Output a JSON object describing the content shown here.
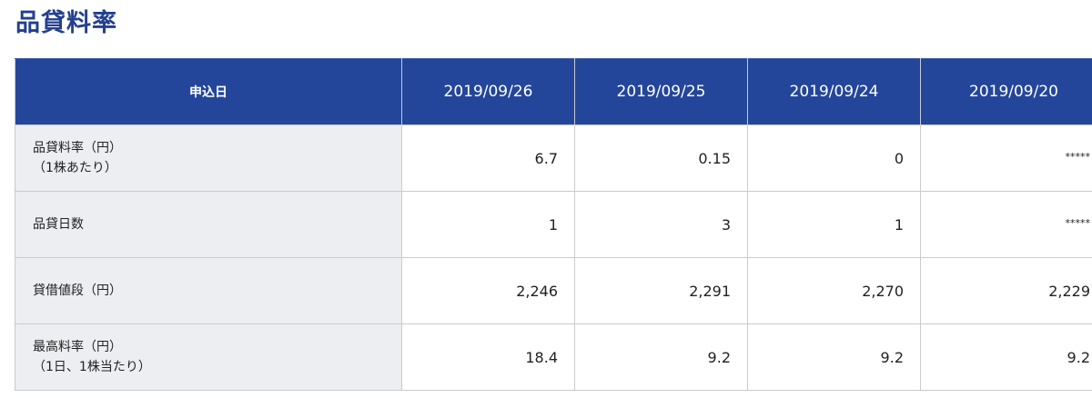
{
  "page": {
    "title": "品貸料率"
  },
  "table": {
    "header_label": "申込日",
    "dates": [
      "2019/09/26",
      "2019/09/25",
      "2019/09/24",
      "2019/09/20"
    ],
    "rows": [
      {
        "label_line1": "品貸料率（円）",
        "label_line2": "（1株あたり）",
        "values": [
          "6.7",
          "0.15",
          "0",
          "*****"
        ]
      },
      {
        "label_line1": "品貸日数",
        "label_line2": "",
        "values": [
          "1",
          "3",
          "1",
          "*****"
        ]
      },
      {
        "label_line1": "貸借値段（円）",
        "label_line2": "",
        "values": [
          "2,246",
          "2,291",
          "2,270",
          "2,229"
        ]
      },
      {
        "label_line1": "最高料率（円）",
        "label_line2": "（1日、1株当たり）",
        "values": [
          "18.4",
          "9.2",
          "9.2",
          "9.2"
        ]
      }
    ]
  },
  "colors": {
    "title": "#23408f",
    "header_bg": "#23469a",
    "label_bg": "#eceef2",
    "border": "#c9cbd0"
  }
}
